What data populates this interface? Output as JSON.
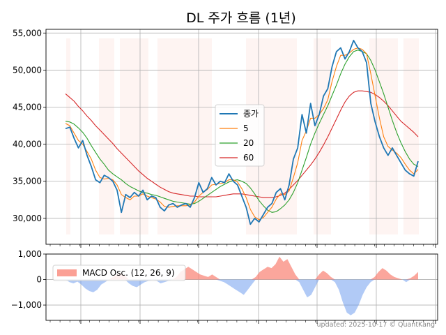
{
  "chart_data": [
    {
      "type": "line",
      "title": "DL 주가 흐름 (1년)",
      "ylim": [
        26500,
        55500
      ],
      "yticks": [
        30000,
        35000,
        40000,
        45000,
        50000,
        55000
      ],
      "ytick_labels": [
        "30,000",
        "35,000",
        "40,000",
        "45,000",
        "50,000",
        "55,000"
      ],
      "grid": true,
      "legend": "center",
      "x": [
        0,
        3,
        6,
        9,
        12,
        15,
        18,
        21,
        24,
        27,
        30,
        33,
        36,
        39,
        42,
        45,
        48,
        51,
        54,
        57,
        60,
        63,
        66,
        69,
        72,
        75,
        78,
        81,
        84,
        87,
        90,
        93,
        96,
        99,
        102,
        105,
        108,
        111,
        114,
        117,
        120,
        123,
        126,
        129,
        132,
        135,
        138,
        141,
        144,
        147,
        150,
        153,
        156,
        159,
        162,
        165,
        168,
        171,
        174,
        177,
        180,
        183,
        186,
        189,
        192,
        195,
        198,
        201,
        204,
        207,
        210,
        213,
        216,
        219,
        222,
        225,
        228,
        231,
        234,
        237,
        240,
        243,
        246
      ],
      "series": [
        {
          "name": "종가",
          "color": "#1f77b4",
          "values": [
            42100,
            42300,
            40800,
            39500,
            40500,
            38500,
            37000,
            35200,
            34800,
            35800,
            35500,
            35000,
            33800,
            30800,
            33200,
            32800,
            33500,
            33000,
            33800,
            32500,
            33000,
            32800,
            31500,
            31000,
            31800,
            32000,
            31500,
            31800,
            32000,
            31500,
            32800,
            34800,
            33500,
            34000,
            35500,
            34500,
            35000,
            34800,
            36000,
            35000,
            34500,
            33000,
            31500,
            29200,
            30000,
            29500,
            30500,
            31500,
            32000,
            33500,
            34000,
            32500,
            34500,
            38000,
            39500,
            44000,
            41500,
            45500,
            42500,
            44000,
            46500,
            47500,
            50500,
            52500,
            53000,
            51500,
            52500,
            54000,
            53000,
            52500,
            51000,
            45500,
            43000,
            41000,
            39500,
            38500,
            39500,
            38500,
            37500,
            36500,
            36000,
            35700,
            37700
          ]
        },
        {
          "name": "5",
          "color": "#ff7f0e",
          "values": [
            42800,
            42500,
            41500,
            40500,
            40000,
            39000,
            38000,
            36500,
            35500,
            35300,
            35400,
            35200,
            34500,
            33200,
            32800,
            32500,
            33000,
            33000,
            33300,
            33000,
            32800,
            32600,
            32200,
            31600,
            31500,
            31600,
            31700,
            31700,
            31700,
            31800,
            32200,
            33000,
            33500,
            33900,
            34500,
            34600,
            34700,
            34800,
            35200,
            35200,
            34900,
            34000,
            32800,
            31200,
            30200,
            29800,
            30100,
            30800,
            31500,
            32600,
            33300,
            33200,
            33700,
            35500,
            37500,
            40500,
            41800,
            43500,
            43500,
            44000,
            44800,
            46000,
            48500,
            50500,
            52000,
            52000,
            52300,
            52800,
            53000,
            52800,
            52200,
            49500,
            46500,
            43500,
            41000,
            39700,
            39200,
            38800,
            38200,
            37300,
            36500,
            36000,
            36600
          ]
        },
        {
          "name": "20",
          "color": "#2ca02c",
          "values": [
            43100,
            43000,
            42700,
            42200,
            41600,
            40800,
            39800,
            38900,
            38000,
            37300,
            36500,
            36000,
            35600,
            35200,
            34700,
            34300,
            34000,
            33700,
            33500,
            33400,
            33200,
            33100,
            32900,
            32700,
            32500,
            32300,
            32200,
            32100,
            32000,
            31900,
            32000,
            32300,
            32700,
            33100,
            33500,
            33900,
            34300,
            34600,
            34900,
            35100,
            35200,
            35000,
            34700,
            34100,
            33300,
            32400,
            31700,
            31100,
            30800,
            30900,
            31300,
            31800,
            32500,
            33500,
            34800,
            36500,
            38200,
            40000,
            41500,
            42800,
            44000,
            45200,
            46600,
            48000,
            49500,
            50800,
            51800,
            52500,
            52700,
            52500,
            52200,
            51300,
            50000,
            48400,
            46800,
            45000,
            43200,
            41600,
            40200,
            39000,
            38000,
            37300,
            37000
          ]
        },
        {
          "name": "60",
          "color": "#d62728",
          "values": [
            46800,
            46300,
            45800,
            45100,
            44500,
            43800,
            43200,
            42500,
            41900,
            41300,
            40700,
            40100,
            39400,
            38800,
            38200,
            37600,
            37000,
            36400,
            35900,
            35400,
            35000,
            34600,
            34200,
            33900,
            33600,
            33400,
            33300,
            33200,
            33100,
            33000,
            33000,
            32900,
            32900,
            32900,
            32900,
            32900,
            33000,
            33100,
            33200,
            33300,
            33300,
            33300,
            33200,
            33100,
            33000,
            32900,
            32800,
            32800,
            32800,
            32900,
            33100,
            33400,
            33900,
            34500,
            35100,
            35800,
            36500,
            37200,
            38000,
            38900,
            39900,
            41000,
            42200,
            43400,
            44600,
            45700,
            46500,
            47000,
            47200,
            47200,
            47100,
            47000,
            46700,
            46300,
            45800,
            45200,
            44500,
            43800,
            43100,
            42600,
            42100,
            41600,
            41000
          ]
        }
      ]
    },
    {
      "type": "area",
      "ylim": [
        -1600,
        1000
      ],
      "yticks": [
        -1000,
        0,
        1000
      ],
      "ytick_labels": [
        "−1,000",
        "0",
        "1,000"
      ],
      "grid": true,
      "legend": "top-left",
      "series": [
        {
          "name": "MACD Osc. (12, 26, 9)",
          "positive_color": "#fa8072",
          "negative_color": "#6495ed",
          "values": [
            0,
            -100,
            -150,
            -80,
            -200,
            -350,
            -450,
            -500,
            -400,
            -200,
            -100,
            0,
            100,
            200,
            250,
            150,
            -150,
            -250,
            -300,
            -200,
            -100,
            -50,
            0,
            -50,
            -150,
            -100,
            -50,
            0,
            100,
            300,
            400,
            500,
            400,
            300,
            200,
            150,
            100,
            200,
            100,
            -50,
            -100,
            -200,
            -300,
            -400,
            -500,
            -600,
            -400,
            -200,
            100,
            300,
            400,
            500,
            450,
            600,
            900,
            700,
            800,
            500,
            200,
            -100,
            -400,
            -700,
            -600,
            -300,
            200,
            350,
            250,
            100,
            -100,
            -400,
            -900,
            -1300,
            -1400,
            -1300,
            -1000,
            -600,
            -300,
            -100,
            100,
            300,
            450,
            350,
            200,
            100,
            50,
            0,
            -100,
            50,
            150,
            300
          ]
        }
      ]
    }
  ],
  "footer": {
    "text": "updated: 2025-10-17 © QuantKang"
  }
}
